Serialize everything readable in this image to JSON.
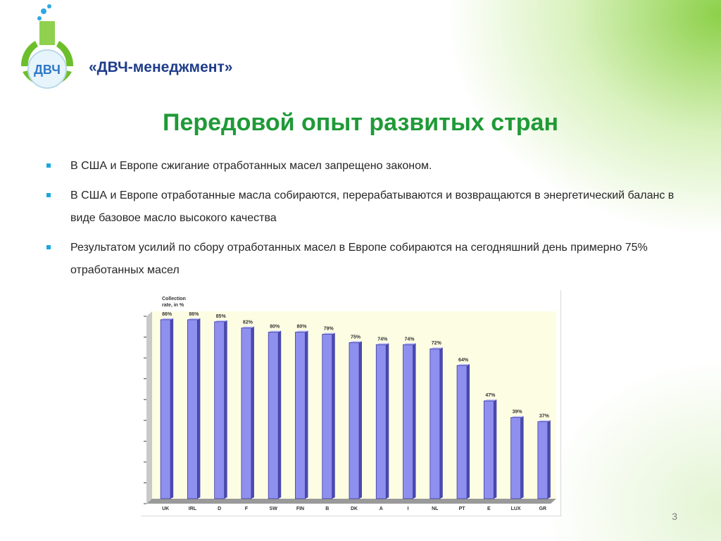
{
  "header": {
    "brand": "«ДВЧ-менеджмент»",
    "logo_text": "ДВЧ"
  },
  "slide": {
    "title": "Передовой опыт развитых стран",
    "bullets": [
      "В США и Европе сжигание отработанных масел запрещено законом.",
      "В США и Европе отработанные масла собираются, перерабатываются и возвращаются в энергетический баланс в виде базовое масло высокого качества",
      "Результатом усилий по сбору отработанных масел в Европе собираются на сегодняшний день примерно 75% отработанных масел"
    ],
    "page_number": "3"
  },
  "colors": {
    "title": "#1f9a37",
    "brand": "#1f3d8a",
    "bullet": "#1aa8e0",
    "bar": "#8f8ff0",
    "plot_bg": "#fdfde3"
  },
  "chart_data": {
    "type": "bar",
    "ylabel": "Collection rate, in %",
    "categories": [
      "UK",
      "IRL",
      "D",
      "F",
      "SW",
      "FIN",
      "B",
      "DK",
      "A",
      "I",
      "NL",
      "PT",
      "E",
      "LUX",
      "GR"
    ],
    "values": [
      86,
      86,
      85,
      82,
      80,
      80,
      79,
      75,
      74,
      74,
      72,
      64,
      47,
      39,
      37
    ],
    "value_labels": [
      "86%",
      "86%",
      "85%",
      "82%",
      "80%",
      "80%",
      "79%",
      "75%",
      "74%",
      "74%",
      "72%",
      "64%",
      "47%",
      "39%",
      "37%"
    ],
    "ylim": [
      0,
      90
    ],
    "grid": false,
    "legend": "none"
  }
}
